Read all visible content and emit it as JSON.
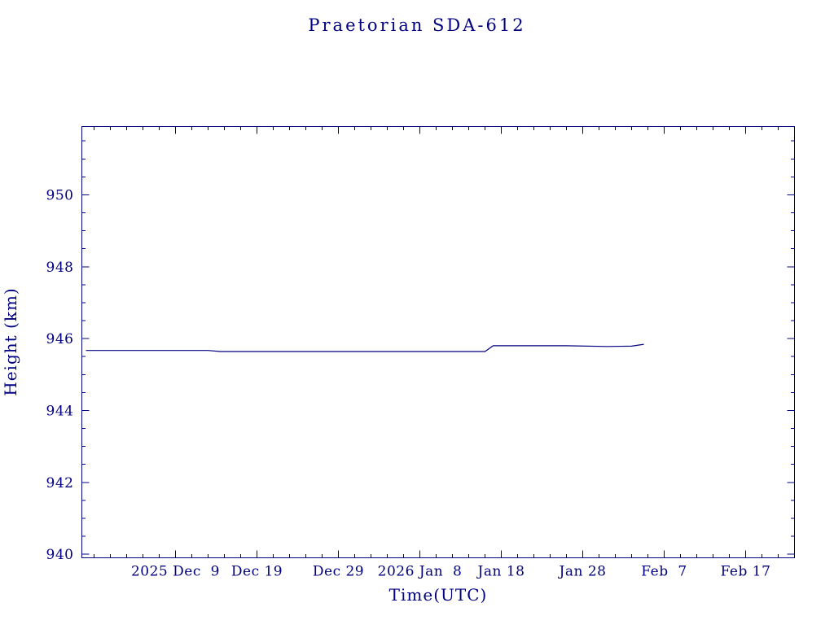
{
  "page": {
    "background": "#ffffff"
  },
  "chart_data": {
    "type": "line",
    "title": "Praetorian SDA-612",
    "xlabel": "Time(UTC)",
    "ylabel": "Height (km)",
    "accent_color": "#000080",
    "line_color": "#000080",
    "background": "#ffffff",
    "grid": false,
    "legend": "none",
    "xlim": [
      "2025-11-27T12:00:00Z",
      "2026-02-23T00:00:00Z"
    ],
    "ylim": [
      939.9,
      951.9
    ],
    "x_major_ticks": [
      {
        "date": "2025-12-09",
        "label": "2025 Dec  9"
      },
      {
        "date": "2025-12-19",
        "label": "Dec 19"
      },
      {
        "date": "2025-12-29",
        "label": "Dec 29"
      },
      {
        "date": "2026-01-08",
        "label": "2026 Jan  8"
      },
      {
        "date": "2026-01-18",
        "label": "Jan 18"
      },
      {
        "date": "2026-01-28",
        "label": "Jan 28"
      },
      {
        "date": "2026-02-07",
        "label": "Feb  7"
      },
      {
        "date": "2026-02-17",
        "label": "Feb 17"
      }
    ],
    "x_minor_tick_days": 2,
    "y_major_ticks": [
      940,
      942,
      944,
      946,
      948,
      950
    ],
    "y_minor_tick_step": 0.5,
    "series": [
      {
        "name": "height",
        "points": [
          {
            "t": "2025-11-28T00:00:00Z",
            "h": 945.67
          },
          {
            "t": "2025-12-13T00:00:00Z",
            "h": 945.67
          },
          {
            "t": "2025-12-14T12:00:00Z",
            "h": 945.64
          },
          {
            "t": "2026-01-16T00:00:00Z",
            "h": 945.64
          },
          {
            "t": "2026-01-17T00:00:00Z",
            "h": 945.8
          },
          {
            "t": "2026-01-26T00:00:00Z",
            "h": 945.8
          },
          {
            "t": "2026-01-31T00:00:00Z",
            "h": 945.78
          },
          {
            "t": "2026-02-03T00:00:00Z",
            "h": 945.79
          },
          {
            "t": "2026-02-04T12:00:00Z",
            "h": 945.84
          }
        ]
      }
    ]
  }
}
